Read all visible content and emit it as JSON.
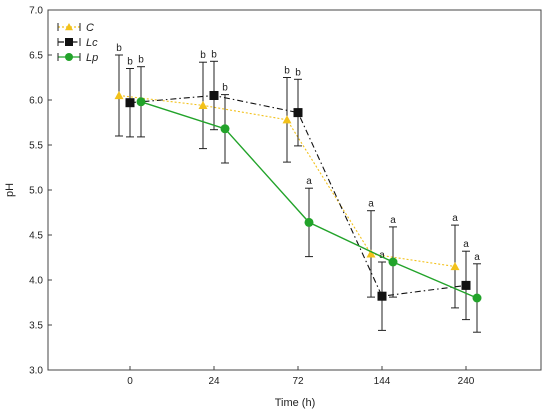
{
  "chart_data": {
    "type": "line",
    "xlabel": "Time (h)",
    "ylabel": "pH",
    "categories": [
      "0",
      "24",
      "72",
      "144",
      "240"
    ],
    "ylim": [
      3.0,
      7.0
    ],
    "yticks": [
      "3.0",
      "3.5",
      "4.0",
      "4.5",
      "5.0",
      "5.5",
      "6.0",
      "6.5",
      "7.0"
    ],
    "grid": false,
    "legend_position": "top-left",
    "series": [
      {
        "name": "C",
        "color": "#f2c11b",
        "marker": "triangle",
        "line_style": "dotted",
        "values": [
          6.05,
          5.94,
          5.78,
          4.29,
          4.15
        ],
        "err": [
          0.45,
          0.48,
          0.47,
          0.48,
          0.46
        ],
        "labels": [
          "b",
          "b",
          "b",
          "a",
          "a"
        ]
      },
      {
        "name": "Lc",
        "color": "#111111",
        "marker": "square",
        "line_style": "dashdot",
        "values": [
          5.97,
          6.05,
          5.86,
          3.82,
          3.94
        ],
        "err": [
          0.38,
          0.38,
          0.37,
          0.38,
          0.38
        ],
        "labels": [
          "b",
          "b",
          "b",
          "a",
          "a"
        ]
      },
      {
        "name": "Lp",
        "color": "#22a32a",
        "marker": "circle",
        "line_style": "solid",
        "values": [
          5.98,
          5.68,
          4.64,
          4.2,
          3.8
        ],
        "err": [
          0.39,
          0.38,
          0.38,
          0.39,
          0.38
        ],
        "labels": [
          "b",
          "b",
          "a",
          "a",
          "a"
        ]
      }
    ]
  }
}
